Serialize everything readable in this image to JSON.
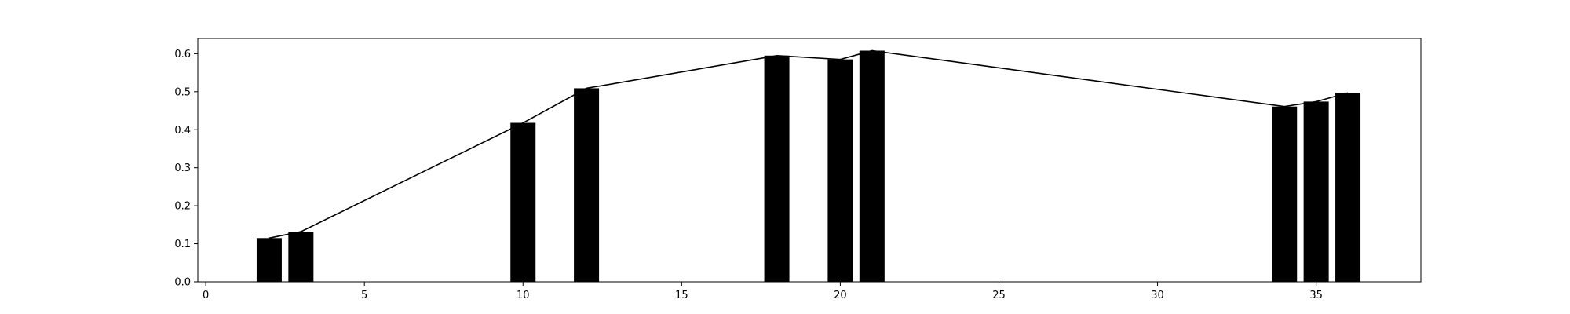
{
  "chart_data": {
    "type": "bar",
    "x": [
      2,
      3,
      10,
      12,
      18,
      20,
      21,
      34,
      35,
      36
    ],
    "values": [
      0.115,
      0.132,
      0.418,
      0.509,
      0.595,
      0.585,
      0.608,
      0.461,
      0.474,
      0.497
    ],
    "overlay_line": {
      "x": [
        2,
        3,
        10,
        12,
        18,
        20,
        21,
        34,
        35,
        36
      ],
      "values": [
        0.115,
        0.132,
        0.418,
        0.509,
        0.595,
        0.585,
        0.608,
        0.461,
        0.474,
        0.497
      ]
    },
    "xlim": [
      -0.25,
      38.3
    ],
    "ylim": [
      0.0,
      0.64
    ],
    "xticks": [
      0,
      5,
      10,
      15,
      20,
      25,
      30,
      35
    ],
    "yticks": [
      0.0,
      0.1,
      0.2,
      0.3,
      0.4,
      0.5,
      0.6
    ],
    "xtick_labels": [
      "0",
      "5",
      "10",
      "15",
      "20",
      "25",
      "30",
      "35"
    ],
    "ytick_labels": [
      "0.0",
      "0.1",
      "0.2",
      "0.3",
      "0.4",
      "0.5",
      "0.6"
    ],
    "title": "",
    "xlabel": "",
    "ylabel": "",
    "grid": false,
    "colors": {
      "bar": "#000000",
      "line": "#000000",
      "axes": "#000000",
      "background": "#ffffff"
    }
  }
}
